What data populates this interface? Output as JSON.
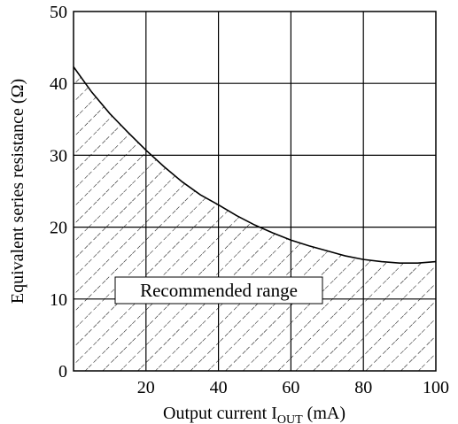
{
  "chart_data": {
    "type": "line",
    "xlabel": "Output current I",
    "xlabel_sub": "OUT",
    "xlabel_unit": " (mA)",
    "ylabel": "Equivalent series resistance (Ω)",
    "xlim": [
      0,
      100
    ],
    "ylim": [
      0,
      50
    ],
    "x_ticks": [
      "20",
      "40",
      "60",
      "80",
      "100"
    ],
    "y_ticks": [
      "0",
      "10",
      "20",
      "30",
      "40",
      "50"
    ],
    "grid": true,
    "series": [
      {
        "x": [
          0,
          5,
          10,
          15,
          20,
          25,
          30,
          35,
          40,
          45,
          50,
          55,
          60,
          65,
          70,
          75,
          80,
          85,
          90,
          95,
          100
        ],
        "values": [
          42.3,
          38.8,
          35.8,
          33.2,
          30.7,
          28.4,
          26.3,
          24.5,
          23.1,
          21.6,
          20.3,
          19.2,
          18.2,
          17.4,
          16.7,
          16.0,
          15.5,
          15.2,
          15.0,
          15.0,
          15.2
        ]
      }
    ],
    "region_label": "Recommended range",
    "region_fill": "hatched"
  },
  "colors": {
    "line": "#000000",
    "grid": "#000000",
    "hatch": "#000000",
    "background": "#ffffff"
  }
}
